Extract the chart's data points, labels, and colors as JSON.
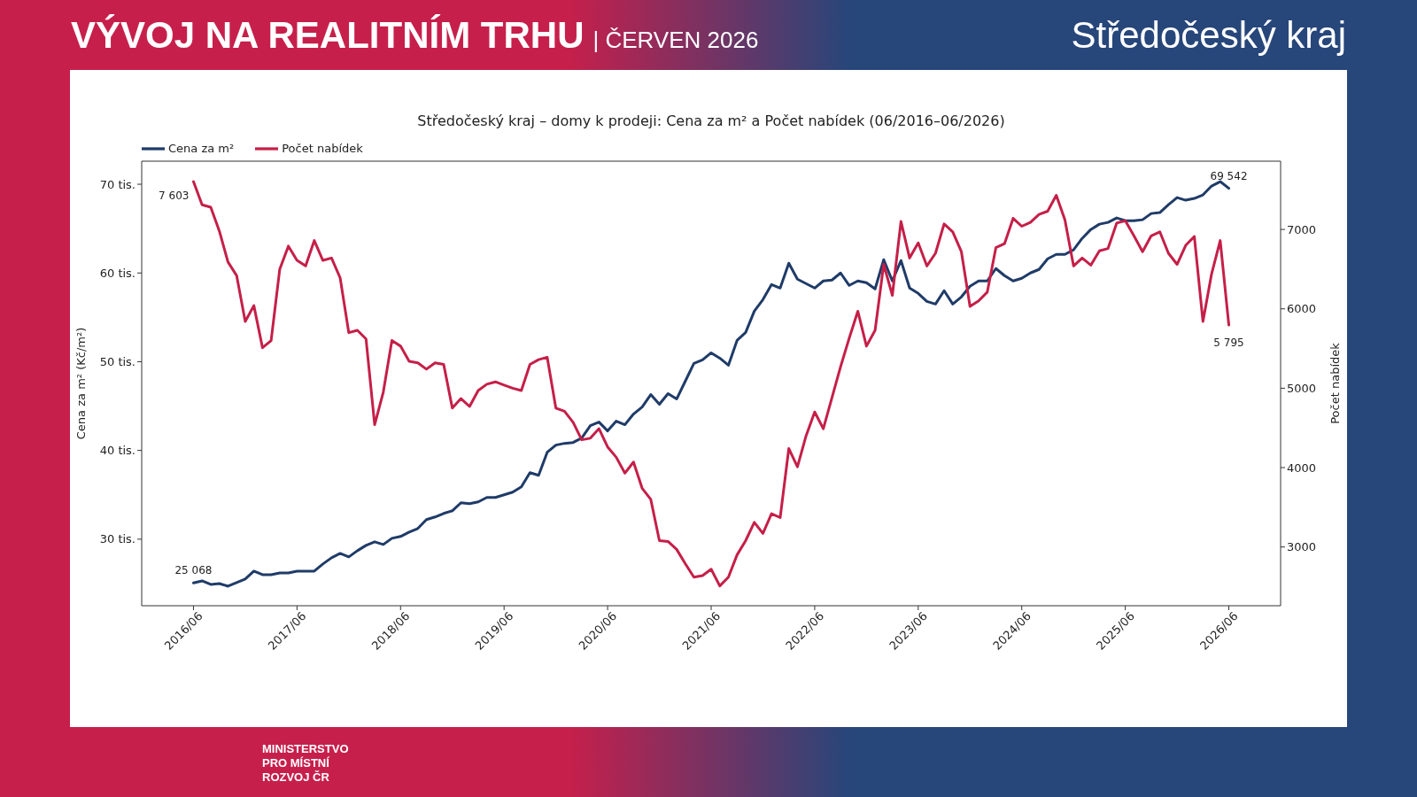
{
  "chart_data": {
    "type": "line",
    "title": "Středočeský kraj – domy k prodeji: Cena za m² a Počet nabídek (06/2016–06/2026)",
    "ylabel": "Cena za m² (Kč/m²)",
    "y2label": "Počet nabídek",
    "annotations": [
      "VÝVOJ NA REALITNÍM TRHU",
      "| ČERVEN 2026",
      "Středočeský kraj",
      "MINISTERSTVO PRO MÍSTNÍ ROZVOJ ČR",
      {
        "text": "25 068",
        "x": "2016-06",
        "y": 25.068
      },
      {
        "text": "69 542",
        "x": "2026-06",
        "y": 69.542
      }
    ],
    "x": [
      "2016-06",
      "2016-07",
      "2016-08",
      "2016-09",
      "2016-10",
      "2016-11",
      "2016-12",
      "2017-01",
      "2017-02",
      "2017-03",
      "2017-04",
      "2017-05",
      "2017-06",
      "2017-07",
      "2017-08",
      "2017-09",
      "2017-10",
      "2017-11",
      "2017-12",
      "2018-01",
      "2018-02",
      "2018-03",
      "2018-04",
      "2018-05",
      "2018-06",
      "2018-07",
      "2018-08",
      "2018-09",
      "2018-10",
      "2018-11",
      "2018-12",
      "2019-01",
      "2019-02",
      "2019-03",
      "2019-04",
      "2019-05",
      "2019-06",
      "2019-07",
      "2019-08",
      "2019-09",
      "2019-10",
      "2019-11",
      "2019-12",
      "2020-01",
      "2020-02",
      "2020-03",
      "2020-04",
      "2020-05",
      "2020-06",
      "2020-07",
      "2020-08",
      "2020-09",
      "2020-10",
      "2020-11",
      "2020-12",
      "2021-01",
      "2021-02",
      "2021-03",
      "2021-04",
      "2021-05",
      "2021-06",
      "2021-07",
      "2021-08",
      "2021-09",
      "2021-10",
      "2021-11",
      "2021-12",
      "2022-01",
      "2022-02",
      "2022-03",
      "2022-04",
      "2022-05",
      "2022-06",
      "2022-07",
      "2022-08",
      "2022-09",
      "2022-10",
      "2022-11",
      "2022-12",
      "2023-01",
      "2023-02",
      "2023-03",
      "2023-04",
      "2023-05",
      "2023-06",
      "2023-07",
      "2023-08",
      "2023-09",
      "2023-10",
      "2023-11",
      "2023-12",
      "2024-01",
      "2024-02",
      "2024-03",
      "2024-04",
      "2024-05",
      "2024-06",
      "2024-07",
      "2024-08",
      "2024-09",
      "2024-10",
      "2024-11",
      "2024-12",
      "2025-01",
      "2025-02",
      "2025-03",
      "2025-04",
      "2025-05",
      "2025-06",
      "2025-07",
      "2025-08",
      "2025-09",
      "2025-10",
      "2025-11",
      "2025-12",
      "2026-01",
      "2026-02",
      "2026-03",
      "2026-04",
      "2026-05",
      "2026-06"
    ],
    "xlim": [
      "2015-12",
      "2026-12"
    ],
    "xticks": [
      {
        "value": "2016-06",
        "label": "2016/06"
      },
      {
        "value": "2017-06",
        "label": "2017/06"
      },
      {
        "value": "2018-06",
        "label": "2018/06"
      },
      {
        "value": "2019-06",
        "label": "2019/06"
      },
      {
        "value": "2020-06",
        "label": "2020/06"
      },
      {
        "value": "2021-06",
        "label": "2021/06"
      },
      {
        "value": "2022-06",
        "label": "2022/06"
      },
      {
        "value": "2023-06",
        "label": "2023/06"
      },
      {
        "value": "2024-06",
        "label": "2024/06"
      },
      {
        "value": "2025-06",
        "label": "2025/06"
      },
      {
        "value": "2026-06",
        "label": "2026/06"
      }
    ],
    "ylim": [
      22.5,
      72.6
    ],
    "yticks": [
      {
        "value": 30,
        "label": "30 tis."
      },
      {
        "value": 40,
        "label": "40 tis."
      },
      {
        "value": 50,
        "label": "50 tis."
      },
      {
        "value": 60,
        "label": "60 tis."
      },
      {
        "value": 70,
        "label": "70 tis."
      }
    ],
    "y2lim": [
      2260,
      7860
    ],
    "y2ticks": [
      3000,
      4000,
      5000,
      6000,
      7000
    ],
    "series": [
      {
        "name": "Cena za m²",
        "color": "#1f3b68",
        "values": [
          25.068,
          25.3,
          24.9,
          25.0,
          24.7,
          25.1,
          25.5,
          26.4,
          26.0,
          26.0,
          26.2,
          26.2,
          26.4,
          26.4,
          26.4,
          27.2,
          27.9,
          28.4,
          28.0,
          28.7,
          29.3,
          29.7,
          29.4,
          30.1,
          30.3,
          30.8,
          31.2,
          32.2,
          32.5,
          32.9,
          33.2,
          34.1,
          34.0,
          34.2,
          34.7,
          34.7,
          35.0,
          35.3,
          35.9,
          37.5,
          37.2,
          39.8,
          40.6,
          40.8,
          40.9,
          41.4,
          42.8,
          43.2,
          42.2,
          43.3,
          42.9,
          44.1,
          44.9,
          46.3,
          45.2,
          46.4,
          45.8,
          47.8,
          49.8,
          50.2,
          51.0,
          50.4,
          49.6,
          52.4,
          53.3,
          55.7,
          57.0,
          58.7,
          58.3,
          61.1,
          59.3,
          58.8,
          58.3,
          59.1,
          59.2,
          60.0,
          58.6,
          59.1,
          58.9,
          58.2,
          61.5,
          59.1,
          61.4,
          58.3,
          57.7,
          56.8,
          56.5,
          58.0,
          56.5,
          57.3,
          58.5,
          59.1,
          59.1,
          60.5,
          59.7,
          59.1,
          59.4,
          60.0,
          60.4,
          61.6,
          62.1,
          62.1,
          62.6,
          63.9,
          64.9,
          65.5,
          65.7,
          66.2,
          65.9,
          65.9,
          66.0,
          66.7,
          66.8,
          67.7,
          68.5,
          68.2,
          68.4,
          68.8,
          69.8,
          70.3,
          69.542
        ]
      },
      {
        "name": "Počet nabídek",
        "color": "#c51f48",
        "axis": "y2",
        "values": [
          7603,
          7310,
          7280,
          6980,
          6590,
          6420,
          5840,
          6040,
          5510,
          5600,
          6500,
          6790,
          6610,
          6540,
          6860,
          6610,
          6640,
          6390,
          5700,
          5730,
          5620,
          4540,
          4950,
          5600,
          5530,
          5340,
          5320,
          5240,
          5320,
          5300,
          4750,
          4870,
          4770,
          4970,
          5050,
          5080,
          5040,
          5000,
          4970,
          5300,
          5360,
          5390,
          4750,
          4710,
          4570,
          4350,
          4370,
          4490,
          4260,
          4130,
          3930,
          4070,
          3740,
          3600,
          3080,
          3070,
          2970,
          2790,
          2620,
          2640,
          2720,
          2510,
          2620,
          2900,
          3080,
          3310,
          3170,
          3420,
          3370,
          4240,
          4010,
          4400,
          4700,
          4490,
          4880,
          5270,
          5630,
          5970,
          5530,
          5730,
          6560,
          6170,
          7100,
          6640,
          6830,
          6540,
          6700,
          7070,
          6970,
          6720,
          6030,
          6100,
          6210,
          6770,
          6820,
          7140,
          7040,
          7090,
          7190,
          7230,
          7430,
          7120,
          6540,
          6640,
          6550,
          6730,
          6760,
          7080,
          7110,
          6920,
          6720,
          6920,
          6970,
          6700,
          6560,
          6800,
          6910,
          5840,
          6440,
          6860,
          5795
        ],
        "value_labels": [
          "7 603",
          null,
          null,
          null,
          null,
          null,
          null,
          null,
          null,
          null,
          null,
          null,
          null,
          null,
          null,
          null,
          null,
          null,
          null,
          null,
          null,
          null,
          null,
          null,
          null,
          null,
          null,
          null,
          null,
          null,
          null,
          null,
          null,
          null,
          null,
          null,
          null,
          null,
          null,
          null,
          null,
          null,
          null,
          null,
          null,
          null,
          null,
          null,
          null,
          null,
          null,
          null,
          null,
          null,
          null,
          null,
          null,
          null,
          null,
          null,
          null,
          null,
          null,
          null,
          null,
          null,
          null,
          null,
          null,
          null,
          null,
          null,
          null,
          null,
          null,
          null,
          null,
          null,
          null,
          null,
          null,
          null,
          null,
          null,
          null,
          null,
          null,
          null,
          null,
          null,
          null,
          null,
          null,
          null,
          null,
          null,
          null,
          null,
          null,
          null,
          null,
          null,
          null,
          null,
          null,
          null,
          null,
          null,
          null,
          null,
          null,
          null,
          null,
          null,
          null,
          null,
          null,
          null,
          null,
          null,
          "5 795"
        ]
      }
    ],
    "legend": "top left",
    "marker": "none"
  }
}
